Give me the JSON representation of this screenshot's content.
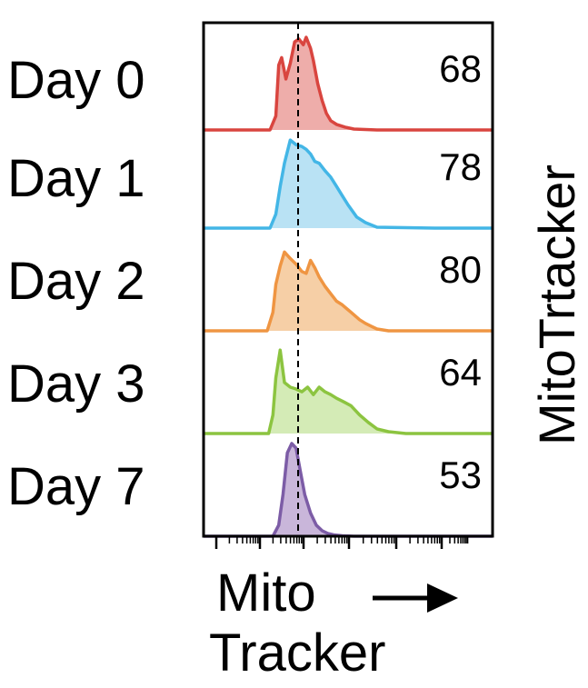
{
  "chart_data": {
    "type": "histogram-overlay",
    "title": "",
    "xlabel_lines": [
      "Mito",
      "Tracker"
    ],
    "xaxis": {
      "scale": "log",
      "ticks_labeled": false
    },
    "ylabel": "MitoTrtacker",
    "gate_line": "dashed",
    "x_domain": [
      0,
      1000
    ],
    "series": [
      {
        "label": "Day 0",
        "percent": "68",
        "color": "#d9453f",
        "fill": "#eeadaa",
        "x": [
          0,
          230,
          250,
          260,
          270,
          285,
          300,
          315,
          330,
          345,
          355,
          370,
          380,
          395,
          410,
          425,
          440,
          460,
          490,
          520,
          600,
          800,
          1000
        ],
        "y": [
          0,
          0,
          0.15,
          0.7,
          0.78,
          0.55,
          0.72,
          0.95,
          0.98,
          0.92,
          1.0,
          0.88,
          0.75,
          0.5,
          0.32,
          0.18,
          0.1,
          0.06,
          0.03,
          0.01,
          0,
          0,
          0
        ]
      },
      {
        "label": "Day 1",
        "percent": "78",
        "color": "#43b6e6",
        "fill": "#b9e2f4",
        "x": [
          0,
          230,
          250,
          265,
          280,
          300,
          320,
          340,
          355,
          370,
          385,
          400,
          420,
          440,
          460,
          480,
          500,
          530,
          560,
          600,
          800,
          1000
        ],
        "y": [
          0,
          0,
          0.15,
          0.45,
          0.7,
          0.95,
          0.9,
          0.88,
          0.85,
          0.8,
          0.72,
          0.7,
          0.62,
          0.55,
          0.45,
          0.35,
          0.25,
          0.12,
          0.06,
          0.01,
          0,
          0
        ]
      },
      {
        "label": "Day 2",
        "percent": "80",
        "color": "#ef9542",
        "fill": "#f6cfa6",
        "x": [
          0,
          220,
          240,
          250,
          265,
          280,
          300,
          320,
          340,
          355,
          370,
          385,
          400,
          420,
          440,
          460,
          480,
          510,
          540,
          560,
          580,
          600,
          620,
          640,
          680,
          800,
          1000
        ],
        "y": [
          0,
          0,
          0.2,
          0.5,
          0.7,
          0.85,
          0.78,
          0.72,
          0.64,
          0.62,
          0.76,
          0.68,
          0.58,
          0.48,
          0.4,
          0.32,
          0.28,
          0.2,
          0.12,
          0.08,
          0.05,
          0.02,
          0.01,
          0,
          0,
          0,
          0
        ]
      },
      {
        "label": "Day 3",
        "percent": "64",
        "color": "#8cc440",
        "fill": "#d4ebb6",
        "x": [
          0,
          225,
          240,
          250,
          265,
          280,
          300,
          320,
          340,
          360,
          380,
          400,
          420,
          440,
          460,
          480,
          510,
          540,
          570,
          600,
          640,
          700,
          800,
          1000
        ],
        "y": [
          0,
          0,
          0.2,
          0.6,
          0.9,
          0.55,
          0.5,
          0.48,
          0.45,
          0.5,
          0.42,
          0.5,
          0.45,
          0.42,
          0.38,
          0.35,
          0.3,
          0.2,
          0.12,
          0.05,
          0.02,
          0,
          0,
          0
        ]
      },
      {
        "label": "Day 7",
        "percent": "53",
        "color": "#7c5ca6",
        "fill": "#c9b6da",
        "x": [
          0,
          240,
          260,
          275,
          290,
          305,
          320,
          335,
          350,
          370,
          390,
          410,
          430,
          450,
          480,
          520,
          800,
          1000
        ],
        "y": [
          0,
          0,
          0.12,
          0.45,
          0.9,
          1.0,
          0.95,
          0.7,
          0.45,
          0.25,
          0.12,
          0.06,
          0.03,
          0.015,
          0.005,
          0,
          0,
          0
        ]
      }
    ]
  }
}
